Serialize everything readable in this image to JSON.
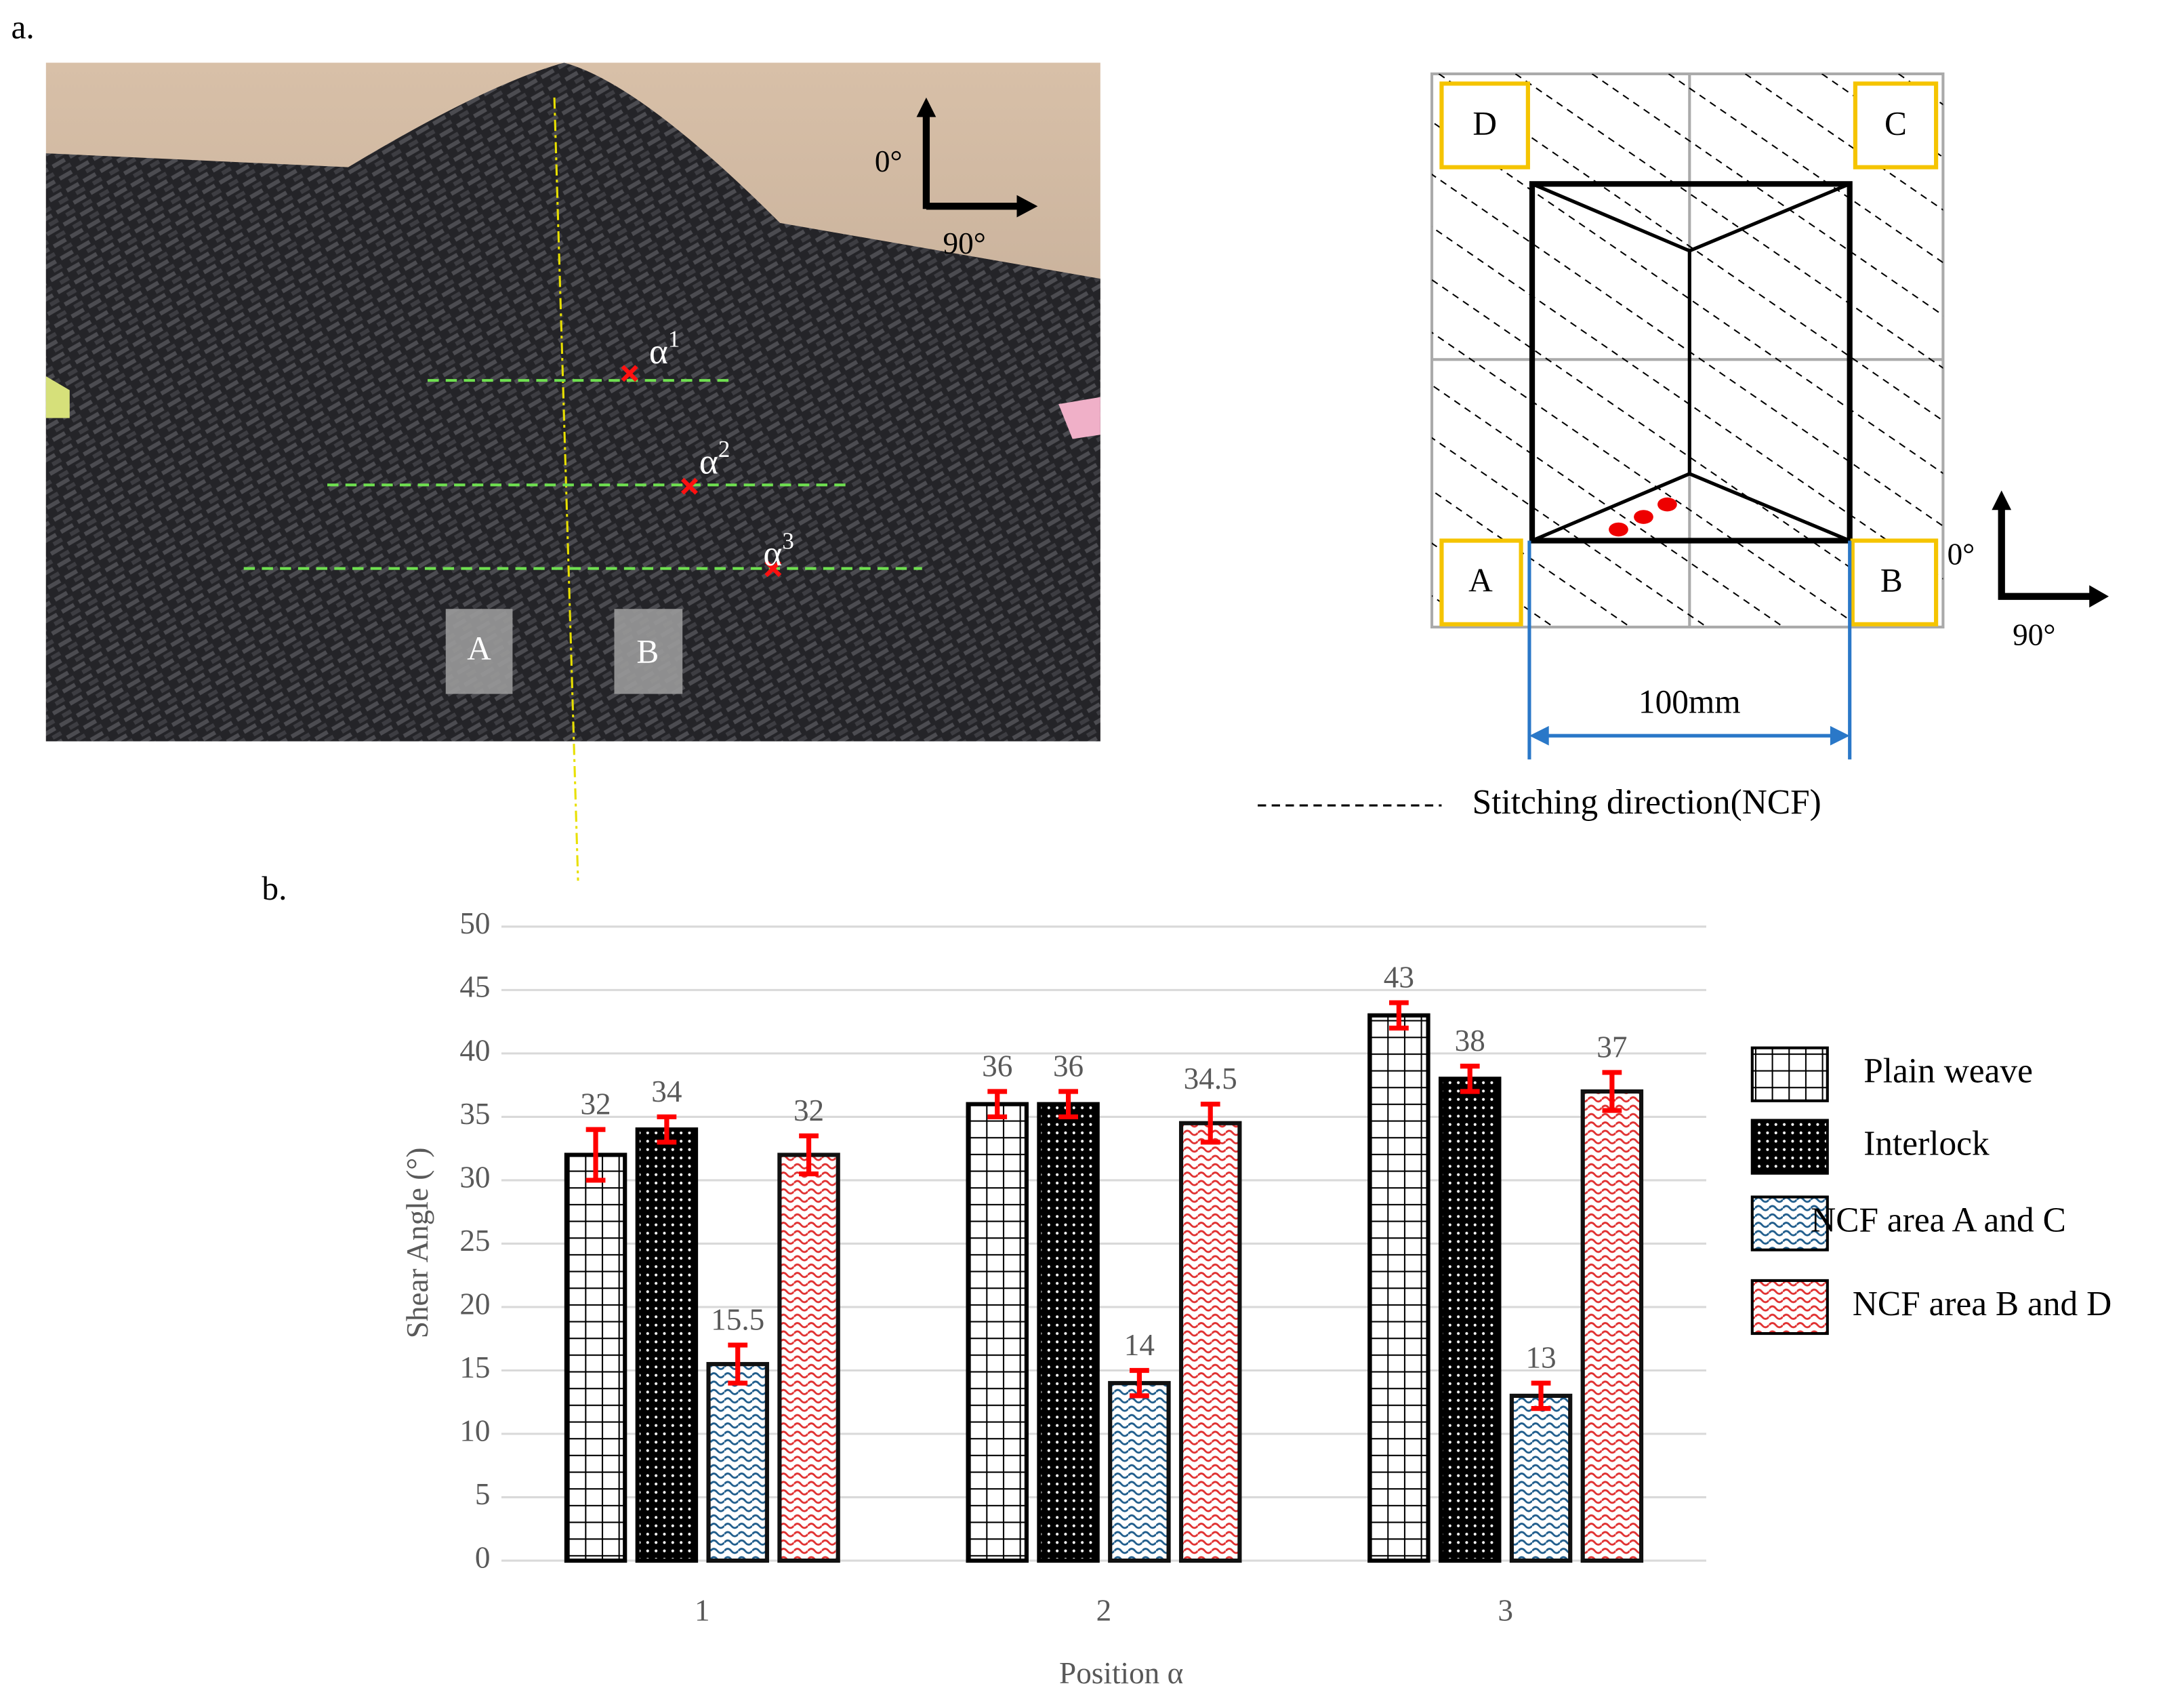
{
  "panel_labels": {
    "a": "a.",
    "b": "b."
  },
  "photo": {
    "points": [
      {
        "base": "α",
        "sup": "1"
      },
      {
        "base": "α",
        "sup": "2"
      },
      {
        "base": "α",
        "sup": "3"
      }
    ],
    "areas": [
      "A",
      "B"
    ],
    "axis_0": "0°",
    "axis_90": "90°"
  },
  "diagram": {
    "corners": [
      "D",
      "C",
      "A",
      "B"
    ],
    "width_label": "100mm",
    "axis_0": "0°",
    "axis_90": "90°",
    "legend": "Stitching direction(NCF)"
  },
  "chart_data": {
    "type": "bar",
    "x_label": "Position α",
    "y_label": "Shear Angle (°)",
    "categories": [
      "1",
      "2",
      "3"
    ],
    "series": [
      {
        "name": "Plain weave",
        "color": "#000000",
        "values": [
          32,
          36,
          43
        ],
        "errors": [
          2,
          1,
          1
        ]
      },
      {
        "name": "Interlock",
        "color": "#000000",
        "values": [
          34,
          36,
          38
        ],
        "errors": [
          1,
          1,
          1
        ]
      },
      {
        "name": "NCF area A and C",
        "color": "#1f5c8b",
        "values": [
          15.5,
          14,
          13
        ],
        "errors": [
          1.5,
          1,
          1
        ]
      },
      {
        "name": "NCF area B and D",
        "color": "#e03030",
        "values": [
          32,
          34.5,
          37
        ],
        "errors": [
          1.5,
          1.5,
          1.5
        ]
      }
    ],
    "error_color": "#ff0000",
    "ylim": [
      0,
      50
    ],
    "yticks": [
      0,
      5,
      10,
      15,
      20,
      25,
      30,
      35,
      40,
      45,
      50
    ],
    "grid": true,
    "legend": "right"
  }
}
